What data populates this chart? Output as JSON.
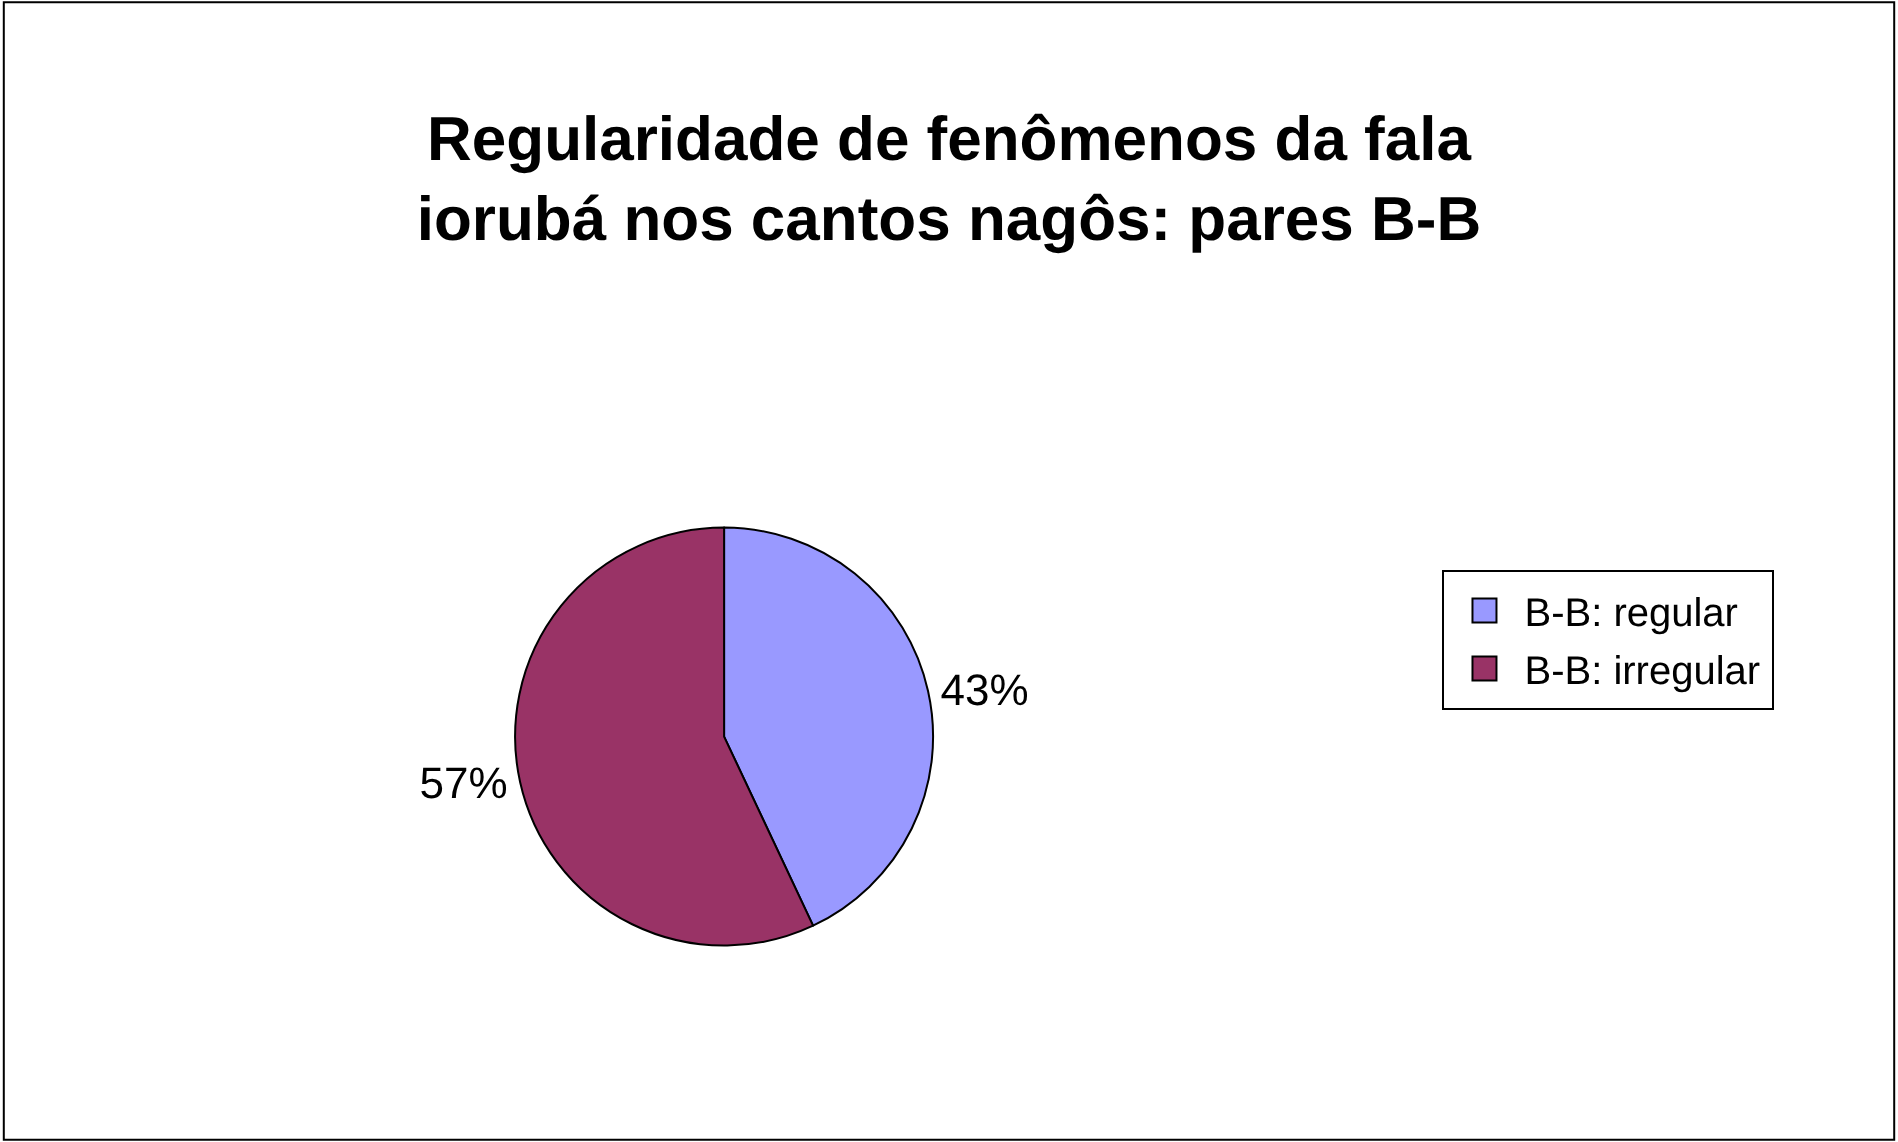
{
  "chart_data": {
    "type": "pie",
    "title": "Regularidade de fenômenos da fala iorubá nos cantos nagôs: pares B-B",
    "categories": [
      "B-B: regular",
      "B-B: irregular"
    ],
    "values": [
      43,
      57
    ],
    "colors": [
      "#9999ff",
      "#993366"
    ],
    "value_labels": [
      "43%",
      "57%"
    ],
    "legend": "right"
  }
}
